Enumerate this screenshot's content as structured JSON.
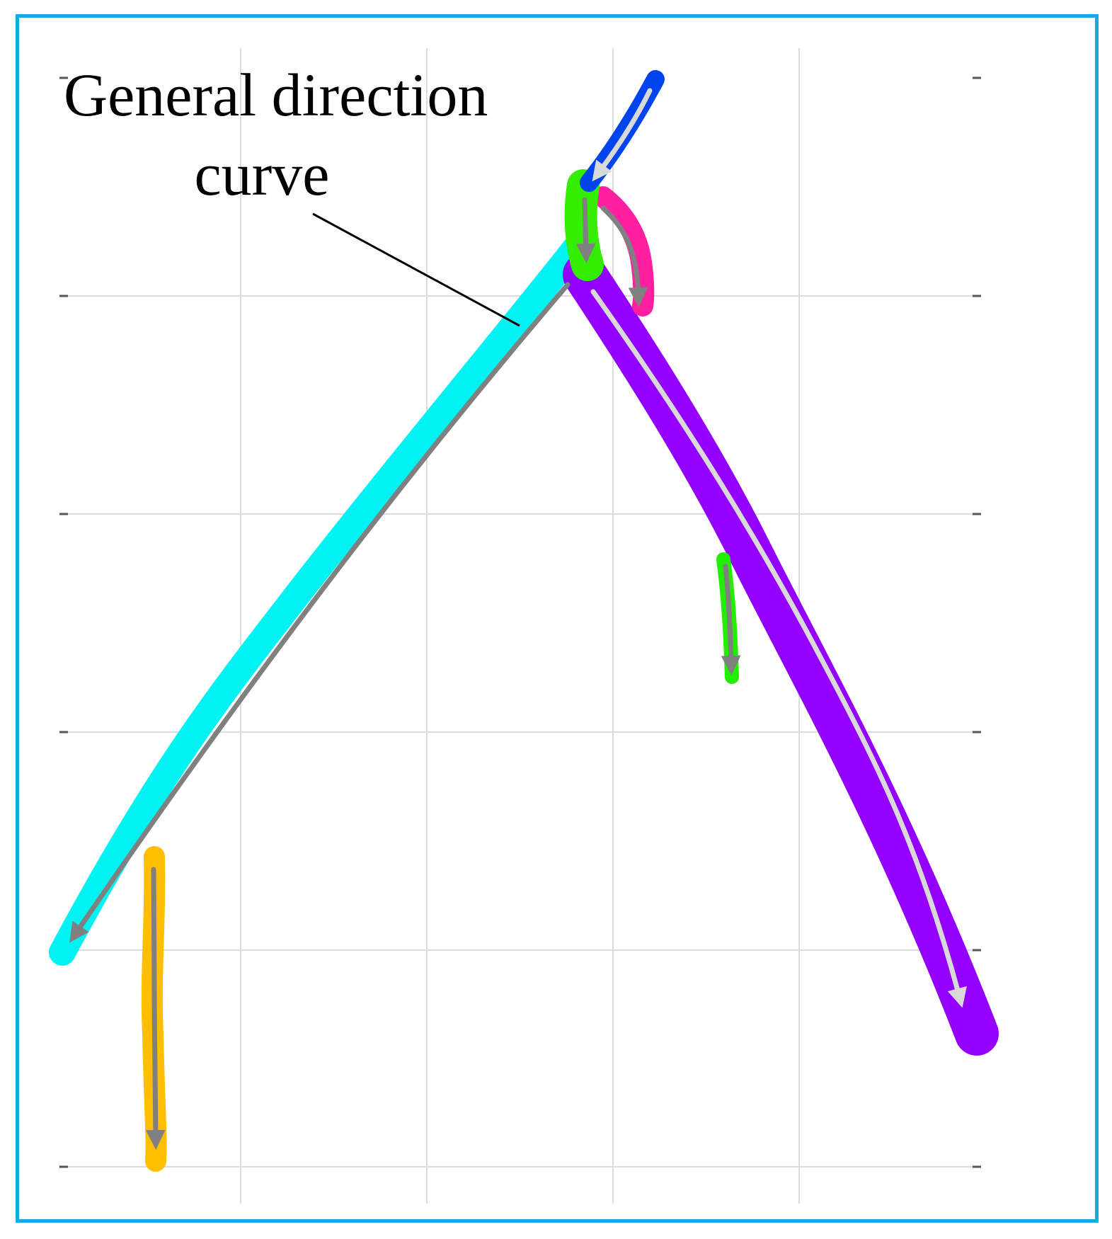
{
  "annotation": {
    "line1": "General direction",
    "line2": "curve"
  },
  "colors": {
    "frame_border": "#1aa7e6",
    "grid": "#dcdcdc",
    "trunk_top": "#0044ee",
    "junction_green": "#33ee00",
    "pink_branch": "#ff1fa0",
    "cyan_branch": "#00f3f3",
    "purple_branch": "#9400ff",
    "orange_branch": "#ffbf00",
    "green_branch": "#22ee00",
    "arrow_gray": "#808080",
    "arrow_light": "#d9d9d9"
  },
  "segments": [
    {
      "name": "blue-trunk",
      "color": "#0044ee"
    },
    {
      "name": "green-junction",
      "color": "#33ee00"
    },
    {
      "name": "pink-branch",
      "color": "#ff1fa0"
    },
    {
      "name": "cyan-branch",
      "color": "#00f3f3"
    },
    {
      "name": "purple-branch",
      "color": "#9400ff"
    },
    {
      "name": "orange-branch",
      "color": "#ffbf00"
    },
    {
      "name": "green-small-branch",
      "color": "#22ee00"
    }
  ]
}
